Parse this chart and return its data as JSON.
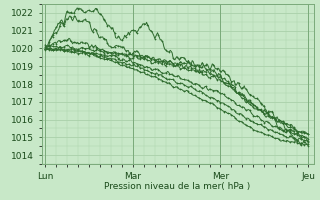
{
  "bg_color": "#c8e8c8",
  "grid_color": "#aad0aa",
  "line_color": "#2d6a2d",
  "ylabel_text": "Pression niveau de la mer( hPa )",
  "x_tick_labels": [
    "Lun",
    "Mar",
    "Mer",
    "Jeu"
  ],
  "x_tick_positions": [
    0,
    48,
    96,
    144
  ],
  "ylim": [
    1013.5,
    1022.5
  ],
  "yticks": [
    1014,
    1015,
    1016,
    1017,
    1018,
    1019,
    1020,
    1021,
    1022
  ],
  "xlim": [
    -2,
    147
  ],
  "series": [
    {
      "pts_x": [
        0,
        8,
        18,
        30,
        40,
        55,
        70,
        96,
        120,
        140,
        144
      ],
      "pts_y": [
        1020.0,
        1021.5,
        1022.2,
        1022.0,
        1020.5,
        1021.4,
        1019.5,
        1018.8,
        1016.8,
        1014.6,
        1014.5
      ]
    },
    {
      "pts_x": [
        0,
        6,
        14,
        22,
        35,
        50,
        60,
        75,
        96,
        110,
        130,
        144
      ],
      "pts_y": [
        1020.0,
        1021.0,
        1021.8,
        1021.5,
        1020.2,
        1019.8,
        1019.3,
        1019.0,
        1018.4,
        1017.2,
        1015.5,
        1015.0
      ]
    },
    {
      "pts_x": [
        0,
        5,
        12,
        20,
        35,
        55,
        70,
        85,
        96,
        110,
        130,
        144
      ],
      "pts_y": [
        1020.0,
        1020.3,
        1020.5,
        1020.3,
        1019.8,
        1019.5,
        1019.2,
        1019.0,
        1018.5,
        1017.0,
        1015.8,
        1015.2
      ]
    },
    {
      "pts_x": [
        0,
        10,
        30,
        55,
        80,
        96,
        115,
        130,
        144
      ],
      "pts_y": [
        1020.0,
        1020.1,
        1019.9,
        1019.4,
        1018.8,
        1018.2,
        1016.8,
        1015.8,
        1015.1
      ]
    },
    {
      "pts_x": [
        0,
        15,
        40,
        70,
        96,
        115,
        130,
        144
      ],
      "pts_y": [
        1020.0,
        1019.9,
        1019.5,
        1018.5,
        1017.5,
        1016.2,
        1015.4,
        1014.9
      ]
    },
    {
      "pts_x": [
        0,
        20,
        50,
        80,
        96,
        115,
        130,
        144
      ],
      "pts_y": [
        1020.0,
        1019.8,
        1019.0,
        1017.8,
        1017.0,
        1015.8,
        1015.1,
        1014.8
      ]
    },
    {
      "pts_x": [
        0,
        25,
        55,
        85,
        96,
        115,
        130,
        144
      ],
      "pts_y": [
        1020.0,
        1019.7,
        1018.6,
        1017.2,
        1016.6,
        1015.4,
        1014.8,
        1014.6
      ]
    }
  ]
}
